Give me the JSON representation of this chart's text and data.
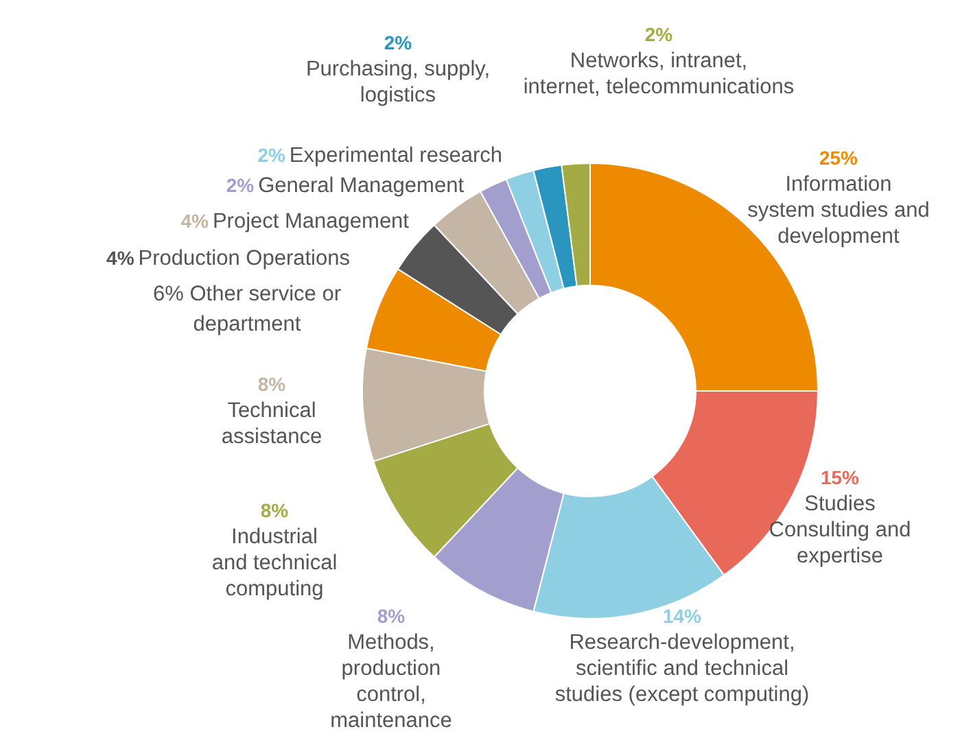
{
  "chart_data": {
    "type": "donut",
    "categories": [
      "Information system studies and development",
      "Studies Consulting and expertise",
      "Research-development, scientific and technical studies (except computing)",
      "Methods, production control, maintenance",
      "Industrial and technical computing",
      "Technical assistance",
      "Other service or department",
      "Production Operations",
      "Project Management",
      "General Management",
      "Experimental research",
      "Purchasing, supply, logistics",
      "Networks, intranet, internet, telecommunications"
    ],
    "values": [
      25,
      15,
      14,
      8,
      8,
      8,
      6,
      4,
      4,
      2,
      2,
      2,
      2
    ],
    "value_labels": [
      "25%",
      "15%",
      "14%",
      "8%",
      "8%",
      "8%",
      "6%",
      "4%",
      "4%",
      "2%",
      "2%",
      "2%",
      "2%"
    ],
    "colors": [
      "#ee8a00",
      "#e8695a",
      "#8ecfe3",
      "#a29fcf",
      "#a4ab45",
      "#c4b5a5",
      "#ee8a00",
      "#555555",
      "#c4b5a5",
      "#a29fcf",
      "#8ecfe3",
      "#2a96c0",
      "#a4ab45"
    ]
  }
}
